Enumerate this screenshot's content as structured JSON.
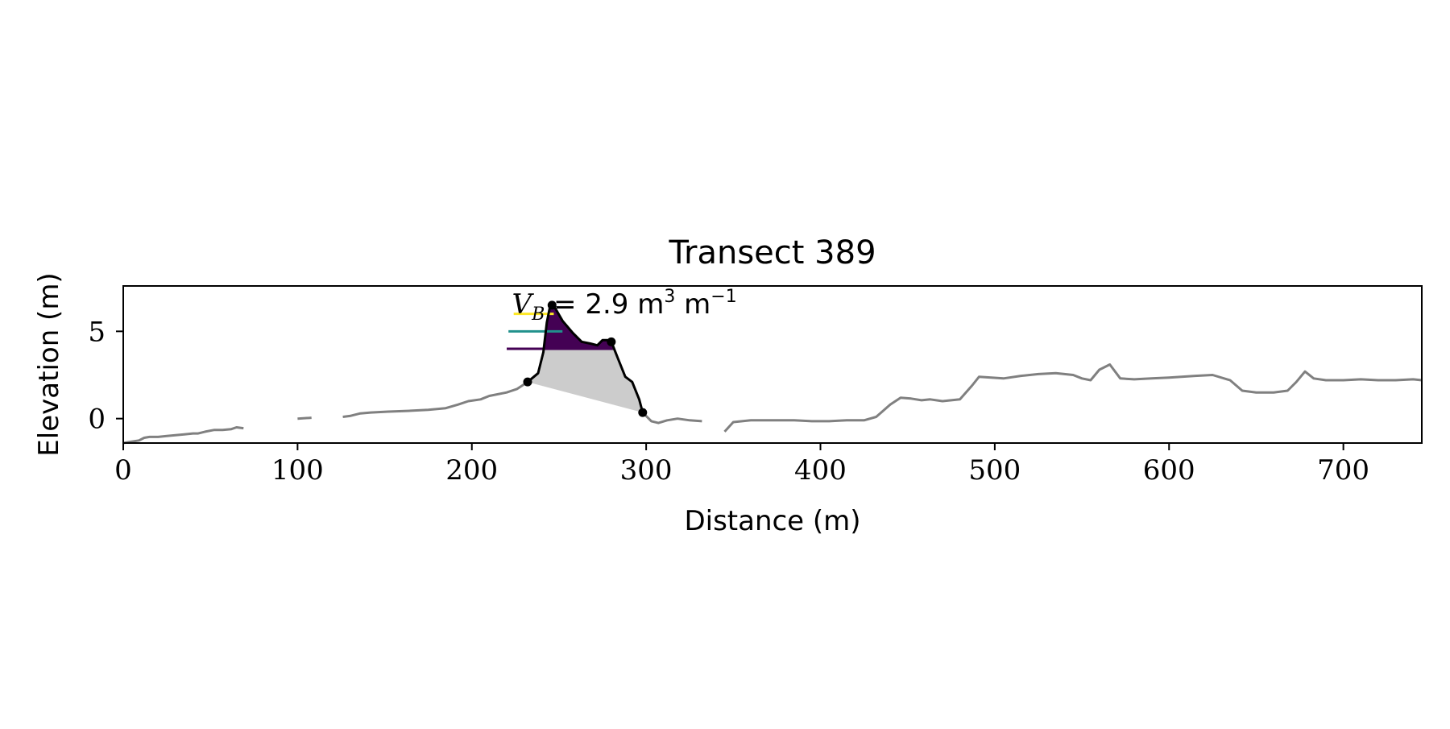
{
  "chart_data": {
    "type": "line",
    "title": "Transect 389",
    "xlabel": "Distance (m)",
    "ylabel": "Elevation (m)",
    "xlim": [
      0,
      745
    ],
    "ylim": [
      -1.4,
      7.6
    ],
    "xticks": [
      0,
      100,
      200,
      300,
      400,
      500,
      600,
      700
    ],
    "yticks": [
      0,
      5
    ],
    "grid": false,
    "annotation": {
      "prefix": "V",
      "subscript": "B",
      "text": " = 2.9 m",
      "sup1": "3",
      "text2": " m",
      "sup2": "−1",
      "x": 223,
      "y": 6.5
    },
    "profile_segments": [
      [
        [
          0,
          -1.4
        ],
        [
          3,
          -1.35
        ],
        [
          6,
          -1.3
        ],
        [
          9,
          -1.25
        ],
        [
          12,
          -1.1
        ],
        [
          15,
          -1.05
        ],
        [
          20,
          -1.05
        ],
        [
          25,
          -1.0
        ],
        [
          30,
          -0.95
        ],
        [
          35,
          -0.9
        ],
        [
          40,
          -0.85
        ],
        [
          43,
          -0.85
        ],
        [
          47,
          -0.75
        ],
        [
          52,
          -0.65
        ],
        [
          57,
          -0.65
        ],
        [
          62,
          -0.6
        ],
        [
          65,
          -0.5
        ],
        [
          69,
          -0.55
        ]
      ],
      [
        [
          100,
          0.0
        ],
        [
          108,
          0.05
        ]
      ],
      [
        [
          126,
          0.1
        ],
        [
          130,
          0.15
        ],
        [
          136,
          0.3
        ],
        [
          142,
          0.35
        ],
        [
          152,
          0.4
        ],
        [
          165,
          0.45
        ],
        [
          175,
          0.5
        ],
        [
          185,
          0.6
        ],
        [
          192,
          0.8
        ],
        [
          198,
          1.0
        ],
        [
          205,
          1.1
        ],
        [
          210,
          1.3
        ],
        [
          220,
          1.5
        ],
        [
          226,
          1.7
        ],
        [
          232,
          2.1
        ]
      ],
      [
        [
          298,
          0.35
        ],
        [
          303,
          -0.15
        ],
        [
          307,
          -0.25
        ],
        [
          312,
          -0.1
        ],
        [
          318,
          0.0
        ],
        [
          325,
          -0.1
        ],
        [
          332,
          -0.15
        ]
      ],
      [
        [
          345,
          -0.75
        ],
        [
          350,
          -0.2
        ],
        [
          360,
          -0.1
        ],
        [
          375,
          -0.1
        ],
        [
          385,
          -0.1
        ],
        [
          395,
          -0.15
        ],
        [
          405,
          -0.15
        ],
        [
          415,
          -0.1
        ],
        [
          425,
          -0.1
        ],
        [
          432,
          0.1
        ],
        [
          440,
          0.8
        ],
        [
          446,
          1.2
        ],
        [
          452,
          1.15
        ],
        [
          458,
          1.05
        ],
        [
          463,
          1.1
        ],
        [
          470,
          1.0
        ],
        [
          480,
          1.1
        ],
        [
          487,
          1.9
        ],
        [
          491,
          2.4
        ],
        [
          498,
          2.35
        ],
        [
          505,
          2.3
        ],
        [
          515,
          2.45
        ],
        [
          525,
          2.55
        ],
        [
          535,
          2.6
        ],
        [
          545,
          2.5
        ],
        [
          550,
          2.3
        ],
        [
          555,
          2.2
        ],
        [
          560,
          2.8
        ],
        [
          566,
          3.1
        ],
        [
          572,
          2.3
        ],
        [
          580,
          2.25
        ],
        [
          590,
          2.3
        ],
        [
          600,
          2.35
        ],
        [
          615,
          2.45
        ],
        [
          625,
          2.5
        ],
        [
          635,
          2.2
        ],
        [
          642,
          1.6
        ],
        [
          650,
          1.5
        ],
        [
          660,
          1.5
        ],
        [
          668,
          1.6
        ],
        [
          673,
          2.1
        ],
        [
          678,
          2.7
        ],
        [
          683,
          2.3
        ],
        [
          690,
          2.2
        ],
        [
          700,
          2.2
        ],
        [
          710,
          2.25
        ],
        [
          720,
          2.2
        ],
        [
          730,
          2.2
        ],
        [
          740,
          2.25
        ],
        [
          745,
          2.2
        ]
      ]
    ],
    "dune_profile": [
      [
        232,
        2.1
      ],
      [
        238,
        2.6
      ],
      [
        241,
        3.8
      ],
      [
        243,
        5.5
      ],
      [
        245,
        6.5
      ],
      [
        248,
        6.3
      ],
      [
        252,
        5.6
      ],
      [
        258,
        4.9
      ],
      [
        263,
        4.4
      ],
      [
        268,
        4.3
      ],
      [
        272,
        4.2
      ],
      [
        275,
        4.5
      ],
      [
        278,
        4.5
      ],
      [
        280,
        4.4
      ],
      [
        284,
        3.4
      ],
      [
        288,
        2.4
      ],
      [
        292,
        2.1
      ],
      [
        296,
        1.1
      ],
      [
        298,
        0.35
      ]
    ],
    "key_points": [
      [
        232,
        2.1
      ],
      [
        246,
        6.5
      ],
      [
        280,
        4.4
      ],
      [
        298,
        0.35
      ]
    ],
    "dune_base_line": [
      [
        232,
        2.1
      ],
      [
        298,
        0.35
      ]
    ],
    "volume_layers": [
      {
        "level": 6.0,
        "color": "#fde725",
        "line_x": [
          224,
          247
        ]
      },
      {
        "level": 5.0,
        "color": "#21918c",
        "line_x": [
          221,
          252
        ]
      },
      {
        "level": 4.0,
        "color": "#440154",
        "line_x": [
          220,
          282
        ]
      }
    ],
    "colors": {
      "profile": "#808080",
      "dune": "#000000",
      "fill": "#cccccc"
    }
  }
}
